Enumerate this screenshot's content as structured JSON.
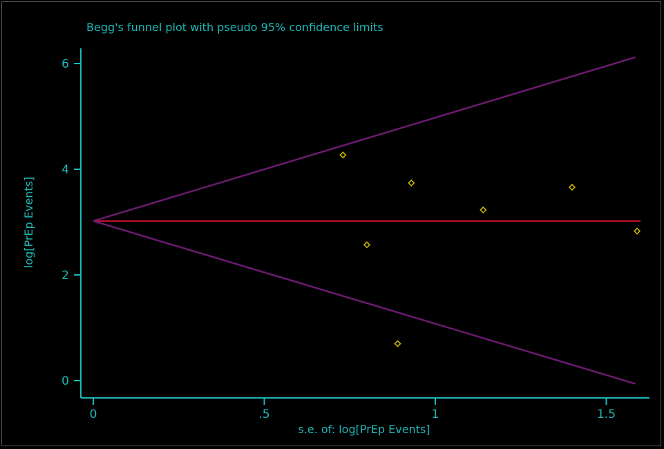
{
  "chart_data": {
    "type": "scatter",
    "title": "Begg's funnel plot with pseudo 95% confidence limits",
    "xlabel": "s.e. of: log[PrEp Events]",
    "ylabel": "log[PrEp Events]",
    "xlim": [
      0,
      1.6
    ],
    "ylim": [
      0,
      6.2
    ],
    "xticks": [
      {
        "value": 0,
        "label": "0"
      },
      {
        "value": 0.5,
        "label": ".5"
      },
      {
        "value": 1,
        "label": "1"
      },
      {
        "value": 1.5,
        "label": "1.5"
      }
    ],
    "yticks": [
      {
        "value": 0,
        "label": "0"
      },
      {
        "value": 2,
        "label": "2"
      },
      {
        "value": 4,
        "label": "4"
      },
      {
        "value": 6,
        "label": "6"
      }
    ],
    "pooled_estimate": 3.02,
    "pseudo_ci_upper": [
      [
        0,
        3.02
      ],
      [
        1.585,
        6.12
      ]
    ],
    "pseudo_ci_lower": [
      [
        0,
        3.02
      ],
      [
        1.585,
        -0.06
      ]
    ],
    "points": [
      {
        "x": 0.73,
        "y": 4.27
      },
      {
        "x": 0.8,
        "y": 2.57
      },
      {
        "x": 0.89,
        "y": 0.7
      },
      {
        "x": 0.93,
        "y": 3.74
      },
      {
        "x": 1.14,
        "y": 3.23
      },
      {
        "x": 1.4,
        "y": 3.66
      },
      {
        "x": 1.59,
        "y": 2.83
      }
    ],
    "grid": false,
    "colors": {
      "background": "#000000",
      "axis": "#1fb9b9",
      "text": "#1fb9b9",
      "pooled_line": "#c8102e",
      "ci_lines": "#6a1b6f",
      "points": "#c9b500"
    }
  }
}
